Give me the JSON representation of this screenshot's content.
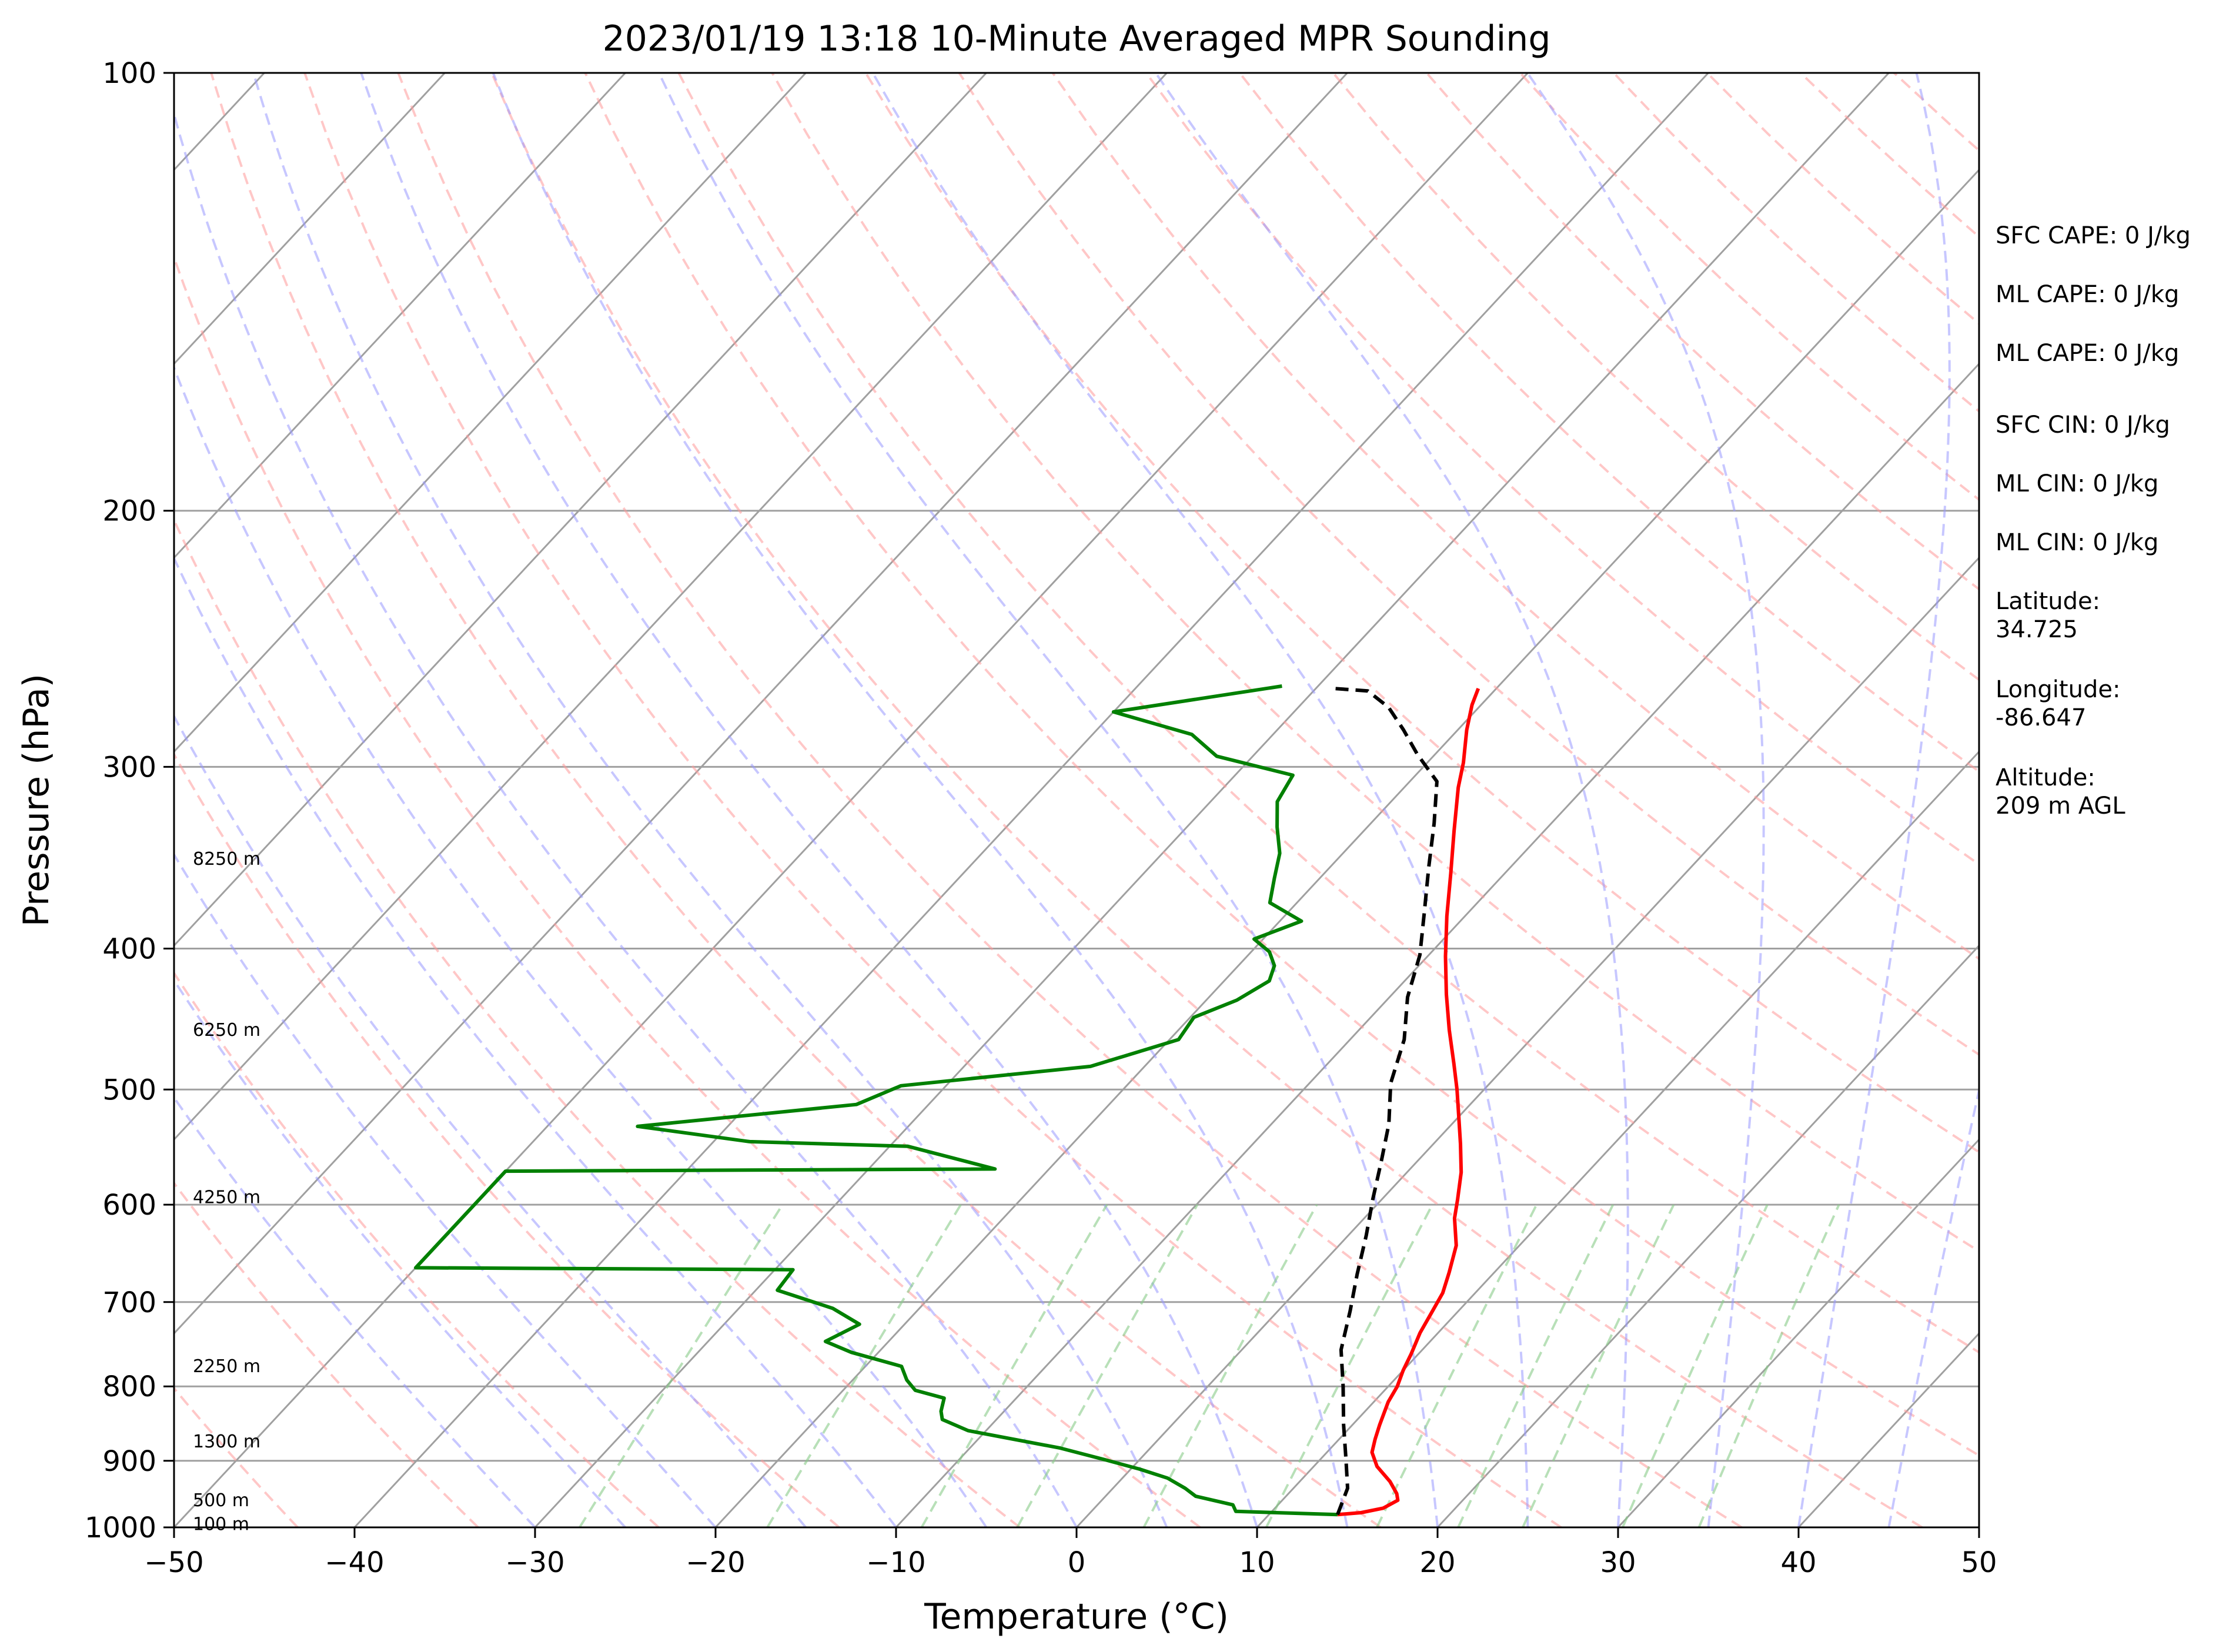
{
  "chart_data": {
    "type": "line",
    "title": "2023/01/19 13:18 10-Minute Averaged MPR Sounding",
    "xlabel": "Temperature (°C)",
    "ylabel": "Pressure (hPa)",
    "xlim": [
      -50,
      50
    ],
    "ylim": [
      1000,
      100
    ],
    "y_scale": "log",
    "x_ticks": [
      {
        "value": -50,
        "label": "−50"
      },
      {
        "value": -40,
        "label": "−40"
      },
      {
        "value": -30,
        "label": "−30"
      },
      {
        "value": -20,
        "label": "−20"
      },
      {
        "value": -10,
        "label": "−10"
      },
      {
        "value": 0,
        "label": "0"
      },
      {
        "value": 10,
        "label": "10"
      },
      {
        "value": 20,
        "label": "20"
      },
      {
        "value": 30,
        "label": "30"
      },
      {
        "value": 40,
        "label": "40"
      },
      {
        "value": 50,
        "label": "50"
      }
    ],
    "y_ticks": [
      {
        "value": 1000,
        "label": "1000"
      },
      {
        "value": 900,
        "label": "900"
      },
      {
        "value": 800,
        "label": "800"
      },
      {
        "value": 700,
        "label": "700"
      },
      {
        "value": 600,
        "label": "600"
      },
      {
        "value": 500,
        "label": "500"
      },
      {
        "value": 400,
        "label": "400"
      },
      {
        "value": 300,
        "label": "300"
      },
      {
        "value": 200,
        "label": "200"
      },
      {
        "value": 100,
        "label": "100"
      }
    ],
    "grid": true,
    "height_labels": [
      {
        "text": "8250 m",
        "p": 347
      },
      {
        "text": "6250 m",
        "p": 455
      },
      {
        "text": "4250 m",
        "p": 593
      },
      {
        "text": "2250 m",
        "p": 775
      },
      {
        "text": "1300 m",
        "p": 873
      },
      {
        "text": "500 m",
        "p": 958
      },
      {
        "text": "100 m",
        "p": 995
      }
    ],
    "series": [
      {
        "role": "temperature",
        "color": "#ff0000",
        "points": [
          [
            -21.0,
            265
          ],
          [
            -20.5,
            272
          ],
          [
            -19.5,
            283
          ],
          [
            -18.0,
            298
          ],
          [
            -17.0,
            310
          ],
          [
            -15.0,
            332
          ],
          [
            -13.0,
            355
          ],
          [
            -11.0,
            380
          ],
          [
            -9.0,
            405
          ],
          [
            -7.0,
            430
          ],
          [
            -5.0,
            455
          ],
          [
            -3.0,
            480
          ],
          [
            -1.5,
            500
          ],
          [
            0.0,
            522
          ],
          [
            1.5,
            545
          ],
          [
            3.0,
            570
          ],
          [
            4.2,
            595
          ],
          [
            5.0,
            613
          ],
          [
            6.5,
            640
          ],
          [
            7.5,
            668
          ],
          [
            8.2,
            690
          ],
          [
            8.6,
            712
          ],
          [
            9.0,
            735
          ],
          [
            9.6,
            760
          ],
          [
            10.0,
            780
          ],
          [
            10.5,
            800
          ],
          [
            10.8,
            820
          ],
          [
            11.5,
            850
          ],
          [
            12.0,
            870
          ],
          [
            12.5,
            888
          ],
          [
            13.5,
            908
          ],
          [
            15.0,
            930
          ],
          [
            16.0,
            948
          ],
          [
            16.4,
            958
          ],
          [
            16.0,
            970
          ],
          [
            15.0,
            977
          ],
          [
            13.8,
            980
          ]
        ]
      },
      {
        "role": "dewpoint",
        "color": "#008000",
        "points": [
          [
            -32.0,
            264
          ],
          [
            -40.0,
            275
          ],
          [
            -34.5,
            285
          ],
          [
            -32.0,
            295
          ],
          [
            -26.8,
            304
          ],
          [
            -26.3,
            317
          ],
          [
            -25.0,
            330
          ],
          [
            -23.5,
            344
          ],
          [
            -22.5,
            358
          ],
          [
            -21.5,
            372
          ],
          [
            -18.8,
            383
          ],
          [
            -20.5,
            394
          ],
          [
            -19.0,
            402
          ],
          [
            -18.0,
            411
          ],
          [
            -17.5,
            421
          ],
          [
            -18.3,
            434
          ],
          [
            -19.8,
            446
          ],
          [
            -19.5,
            462
          ],
          [
            -23.0,
            482
          ],
          [
            -32.5,
            497
          ],
          [
            -34.0,
            512
          ],
          [
            -45.0,
            530
          ],
          [
            -38.0,
            543
          ],
          [
            -29.0,
            547
          ],
          [
            -23.0,
            567
          ],
          [
            -50.0,
            569
          ],
          [
            -50.0,
            663
          ],
          [
            -29.0,
            665
          ],
          [
            -28.8,
            687
          ],
          [
            -24.8,
            707
          ],
          [
            -22.5,
            725
          ],
          [
            -23.5,
            745
          ],
          [
            -21.5,
            758
          ],
          [
            -18.0,
            775
          ],
          [
            -17.0,
            792
          ],
          [
            -16.0,
            805
          ],
          [
            -14.0,
            815
          ],
          [
            -13.5,
            832
          ],
          [
            -13.0,
            843
          ],
          [
            -11.0,
            858
          ],
          [
            -5.0,
            882
          ],
          [
            -2.0,
            898
          ],
          [
            0.5,
            912
          ],
          [
            2.5,
            925
          ],
          [
            4.0,
            940
          ],
          [
            5.0,
            952
          ],
          [
            7.5,
            965
          ],
          [
            8.0,
            975
          ],
          [
            13.8,
            980
          ]
        ]
      },
      {
        "role": "parcel",
        "color": "#000000",
        "dashed": true,
        "points": [
          [
            13.8,
            980
          ],
          [
            13.0,
            940
          ],
          [
            11.5,
            900
          ],
          [
            9.5,
            850
          ],
          [
            7.5,
            800
          ],
          [
            5.5,
            755
          ],
          [
            4.0,
            710
          ],
          [
            2.5,
            670
          ],
          [
            1.0,
            630
          ],
          [
            -0.5,
            595
          ],
          [
            -2.0,
            560
          ],
          [
            -3.5,
            528
          ],
          [
            -5.5,
            495
          ],
          [
            -7.0,
            462
          ],
          [
            -9.0,
            432
          ],
          [
            -10.5,
            404
          ],
          [
            -12.5,
            377
          ],
          [
            -14.5,
            352
          ],
          [
            -16.5,
            328
          ],
          [
            -18.5,
            307
          ],
          [
            -21.0,
            294
          ],
          [
            -23.0,
            283
          ],
          [
            -25.0,
            273
          ],
          [
            -27.0,
            266
          ],
          [
            -29.0,
            265
          ]
        ]
      }
    ],
    "background": {
      "isotherm_color": "#a0a0a0",
      "dry_adiabat_color": "#ff9999",
      "moist_adiabat_color": "#9999ff",
      "mixing_ratio_color": "#88cc88"
    }
  },
  "info_panel": [
    {
      "label": "SFC CAPE: 0 J/kg"
    },
    {
      "label": "ML CAPE: 0 J/kg"
    },
    {
      "label": "ML CAPE: 0 J/kg"
    },
    {
      "label": "SFC CIN: 0 J/kg"
    },
    {
      "label": "ML CIN: 0 J/kg"
    },
    {
      "label": "ML CIN: 0 J/kg"
    },
    {
      "label": "Latitude:",
      "value": "34.725"
    },
    {
      "label": "Longitude:",
      "value": "-86.647"
    },
    {
      "label": "Altitude:",
      "value": "209 m AGL"
    }
  ]
}
